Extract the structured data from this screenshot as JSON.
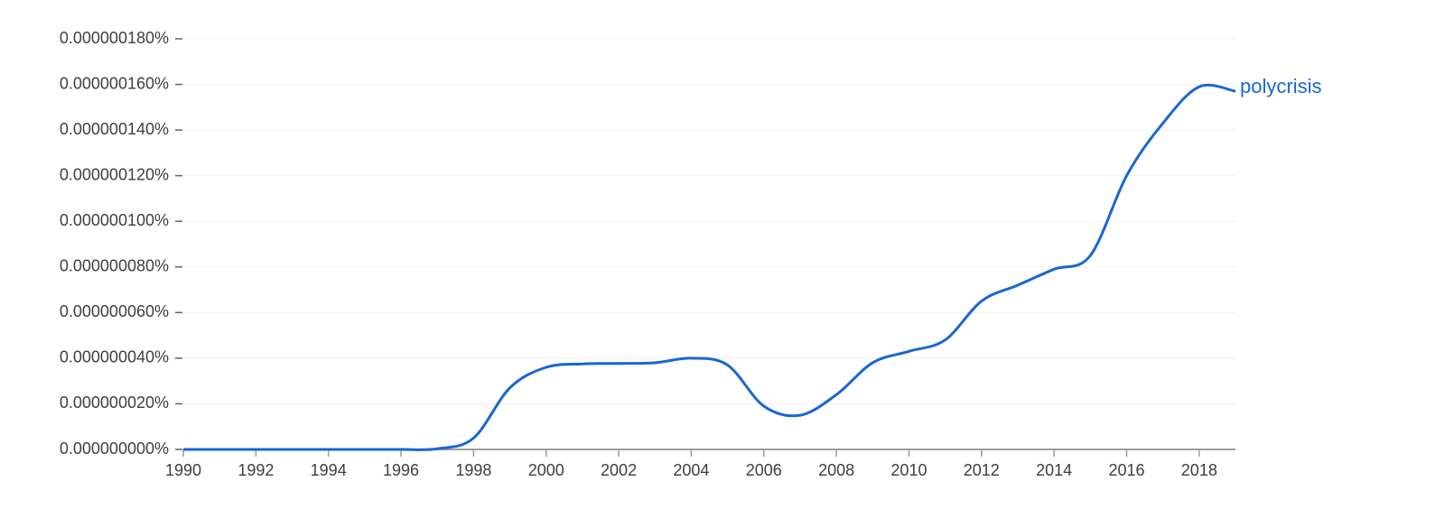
{
  "chart_data": {
    "type": "line",
    "x": [
      1990,
      1991,
      1992,
      1993,
      1994,
      1995,
      1996,
      1997,
      1998,
      1999,
      2000,
      2001,
      2002,
      2003,
      2004,
      2005,
      2006,
      2007,
      2008,
      2009,
      2010,
      2011,
      2012,
      2013,
      2014,
      2015,
      2016,
      2017,
      2018,
      2019
    ],
    "series": [
      {
        "name": "polycrisis",
        "color": "#1967d2",
        "values": [
          0,
          0,
          0,
          0,
          0,
          0,
          0,
          3e-10,
          5e-09,
          2.7e-08,
          3.6e-08,
          3.75e-08,
          3.77e-08,
          3.8e-08,
          4e-08,
          3.7e-08,
          1.9e-08,
          1.5e-08,
          2.4e-08,
          3.8e-08,
          4.3e-08,
          4.8e-08,
          6.5e-08,
          7.2e-08,
          7.9e-08,
          8.5e-08,
          1.2e-07,
          1.43e-07,
          1.59e-07,
          1.57e-07
        ]
      }
    ],
    "xlim": [
      1990,
      2019
    ],
    "xticks": [
      1990,
      1992,
      1994,
      1996,
      1998,
      2000,
      2002,
      2004,
      2006,
      2008,
      2010,
      2012,
      2014,
      2016,
      2018
    ],
    "ylim": [
      0,
      1.8e-07
    ],
    "yticks": [
      {
        "value": 0,
        "label": "0.000000000%"
      },
      {
        "value": 2e-08,
        "label": "0.000000020%"
      },
      {
        "value": 4e-08,
        "label": "0.000000040%"
      },
      {
        "value": 6e-08,
        "label": "0.000000060%"
      },
      {
        "value": 8e-08,
        "label": "0.000000080%"
      },
      {
        "value": 1e-07,
        "label": "0.000000100%"
      },
      {
        "value": 1.2e-07,
        "label": "0.000000120%"
      },
      {
        "value": 1.4e-07,
        "label": "0.000000140%"
      },
      {
        "value": 1.6e-07,
        "label": "0.000000160%"
      },
      {
        "value": 1.8e-07,
        "label": "0.000000180%"
      }
    ],
    "grid": true
  }
}
